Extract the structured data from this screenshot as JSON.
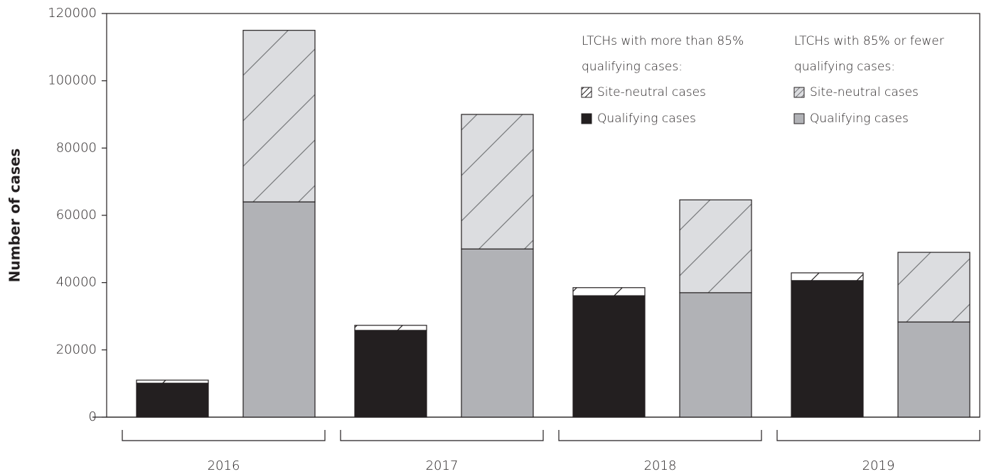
{
  "chart_data": {
    "type": "stacked-bar",
    "y_label": "Number of cases",
    "categories": [
      "2016",
      "2017",
      "2018",
      "2019"
    ],
    "ylim": [
      0,
      120000
    ],
    "yticks": [
      0,
      20000,
      40000,
      60000,
      80000,
      100000,
      120000
    ],
    "groups": [
      {
        "title": "LTCHs with more than 85% qualifying cases:",
        "series": [
          {
            "name": "Qualifying cases",
            "color": "#231f20",
            "values": [
              10100,
              25800,
              36100,
              40600
            ]
          },
          {
            "name": "Site-neutral cases",
            "color": "#ffffff",
            "hatch_color": "#231f20",
            "values": [
              900,
              1500,
              2400,
              2300
            ]
          }
        ]
      },
      {
        "title": "LTCHs with 85% or fewer qualifying cases:",
        "series": [
          {
            "name": "Qualifying cases",
            "color": "#b1b2b6",
            "values": [
              64000,
              50000,
              37000,
              28300
            ]
          },
          {
            "name": "Site-neutral cases",
            "color": "#dcdde0",
            "hatch_color": "#77787b",
            "values": [
              51000,
              40000,
              27600,
              20700
            ]
          }
        ]
      }
    ]
  }
}
